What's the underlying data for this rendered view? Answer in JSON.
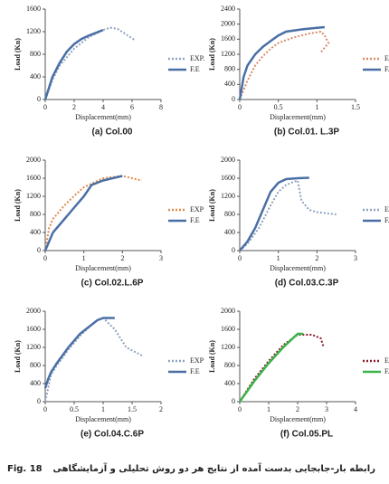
{
  "chart_data": [
    {
      "type": "line",
      "subtitle": "(a) Col.00",
      "xlabel": "Displacement(mm)",
      "ylabel": "Load (Kn)",
      "xlim": [
        0,
        8
      ],
      "xticks": [
        0,
        2,
        4,
        6,
        8
      ],
      "ylim": [
        0,
        1600
      ],
      "yticks": [
        0,
        400,
        800,
        1200,
        1600
      ],
      "series": [
        {
          "name": "EXP.",
          "color": "#8fa3bf",
          "dash": true,
          "x": [
            0,
            0.5,
            1,
            2,
            3,
            4,
            4.5,
            5,
            6.2
          ],
          "values": [
            0,
            350,
            600,
            900,
            1100,
            1230,
            1270,
            1250,
            1050
          ]
        },
        {
          "name": "F.E",
          "color": "#4a6fa5",
          "dash": false,
          "x": [
            0,
            0.5,
            1,
            1.5,
            2,
            2.5,
            3,
            3.5,
            4
          ],
          "values": [
            0,
            400,
            650,
            850,
            980,
            1070,
            1130,
            1180,
            1230
          ]
        }
      ]
    },
    {
      "type": "line",
      "subtitle": "(b) Col.01. L.3P",
      "xlabel": "Displacement(mm)",
      "ylabel": "Load (Kn)",
      "xlim": [
        0,
        1.5
      ],
      "xticks": [
        0,
        0.5,
        1,
        1.5
      ],
      "ylim": [
        0,
        2400
      ],
      "yticks": [
        0,
        400,
        800,
        1200,
        1600,
        2000,
        2400
      ],
      "series": [
        {
          "name": "EXP",
          "color": "#d98b6a",
          "dash": true,
          "x": [
            0,
            0.1,
            0.2,
            0.3,
            0.4,
            0.5,
            0.7,
            0.9,
            1.05,
            1.1,
            1.15,
            1.05
          ],
          "values": [
            0,
            500,
            900,
            1150,
            1350,
            1500,
            1650,
            1750,
            1800,
            1700,
            1500,
            1250
          ]
        },
        {
          "name": "F.E",
          "color": "#4a6fa5",
          "dash": false,
          "x": [
            0,
            0.05,
            0.1,
            0.2,
            0.3,
            0.4,
            0.5,
            0.6,
            0.8,
            1.0,
            1.1
          ],
          "values": [
            0,
            600,
            900,
            1200,
            1400,
            1550,
            1700,
            1800,
            1860,
            1900,
            1920
          ]
        }
      ]
    },
    {
      "type": "line",
      "subtitle": "(c) Col.02.L.6P",
      "xlabel": "Displacement(mm)",
      "ylabel": "Load (Kn)",
      "xlim": [
        0,
        3
      ],
      "xticks": [
        0,
        1,
        2,
        3
      ],
      "ylim": [
        0,
        2000
      ],
      "yticks": [
        0,
        400,
        800,
        1200,
        1600,
        2000
      ],
      "series": [
        {
          "name": "EXP",
          "color": "#e08a4a",
          "dash": true,
          "x": [
            0,
            0.1,
            0.2,
            0.5,
            0.8,
            1.0,
            1.5,
            2.0,
            2.5
          ],
          "values": [
            0,
            500,
            700,
            1000,
            1250,
            1400,
            1600,
            1650,
            1550
          ]
        },
        {
          "name": "F.E",
          "color": "#4a6fa5",
          "dash": false,
          "x": [
            0,
            0.1,
            0.2,
            0.4,
            0.6,
            0.8,
            1.0,
            1.2,
            1.5,
            2.0
          ],
          "values": [
            0,
            200,
            400,
            600,
            800,
            1000,
            1200,
            1450,
            1550,
            1650
          ]
        }
      ]
    },
    {
      "type": "line",
      "subtitle": "(d) Col.03.C.3P",
      "xlabel": "Displacement(mm)",
      "ylabel": "Load (Kn)",
      "xlim": [
        0,
        3
      ],
      "xticks": [
        0,
        1,
        2,
        3
      ],
      "ylim": [
        0,
        2000
      ],
      "yticks": [
        0,
        400,
        800,
        1200,
        1600,
        2000
      ],
      "series": [
        {
          "name": "EXP",
          "color": "#8fa3bf",
          "dash": true,
          "x": [
            0,
            0.2,
            0.5,
            0.8,
            1.0,
            1.2,
            1.4,
            1.5,
            1.6,
            1.8,
            2.0,
            2.5
          ],
          "values": [
            0,
            150,
            500,
            1000,
            1300,
            1450,
            1520,
            1550,
            1100,
            900,
            850,
            800
          ]
        },
        {
          "name": "F.E",
          "color": "#4a6fa5",
          "dash": false,
          "x": [
            0,
            0.2,
            0.4,
            0.6,
            0.8,
            1.0,
            1.2,
            1.5,
            1.8
          ],
          "values": [
            0,
            200,
            500,
            900,
            1300,
            1500,
            1580,
            1600,
            1610
          ]
        }
      ]
    },
    {
      "type": "line",
      "subtitle": "(e) Col.04.C.6P",
      "xlabel": "Displacement(mm)",
      "ylabel": "Load (Kn)",
      "xlim": [
        0,
        2
      ],
      "xticks": [
        0,
        0.5,
        1,
        1.5,
        2
      ],
      "ylim": [
        0,
        2000
      ],
      "yticks": [
        0,
        400,
        800,
        1200,
        1600,
        2000
      ],
      "series": [
        {
          "name": "EXP",
          "color": "#8fa3bf",
          "dash": true,
          "x": [
            0,
            0.1,
            0.2,
            0.4,
            0.6,
            0.8,
            0.9,
            1.0,
            1.2,
            1.4,
            1.7
          ],
          "values": [
            0,
            600,
            800,
            1150,
            1450,
            1700,
            1800,
            1850,
            1600,
            1200,
            1000
          ]
        },
        {
          "name": "F.E",
          "color": "#4a6fa5",
          "dash": false,
          "x": [
            0,
            0.05,
            0.1,
            0.2,
            0.4,
            0.6,
            0.8,
            0.9,
            1.0,
            1.2
          ],
          "values": [
            300,
            500,
            650,
            850,
            1200,
            1500,
            1700,
            1800,
            1850,
            1850
          ]
        }
      ]
    },
    {
      "type": "line",
      "subtitle": "(f) Col.05.PL",
      "xlabel": "Displacement(mm)",
      "ylabel": "Load (Kn)",
      "xlim": [
        0,
        4
      ],
      "xticks": [
        0,
        1,
        2,
        3,
        4
      ],
      "ylim": [
        0,
        2000
      ],
      "yticks": [
        0,
        400,
        800,
        1200,
        1600,
        2000
      ],
      "series": [
        {
          "name": "EXP",
          "color": "#8b1a2b",
          "dash": true,
          "x": [
            0,
            0.5,
            1,
            1.5,
            2,
            2.5,
            2.8,
            2.9
          ],
          "values": [
            0,
            500,
            900,
            1250,
            1480,
            1480,
            1400,
            1200
          ]
        },
        {
          "name": "F.E",
          "color": "#3cb34a",
          "dash": false,
          "x": [
            0,
            0.5,
            1,
            1.5,
            2,
            2.2
          ],
          "values": [
            0,
            450,
            850,
            1200,
            1500,
            1500
          ]
        }
      ]
    }
  ],
  "figure": {
    "label": "Fig. 18",
    "caption": "رابطه بار-جابجایی بدست آمده از نتایج هر دو روش تحلیلی و آزمایشگاهی"
  }
}
